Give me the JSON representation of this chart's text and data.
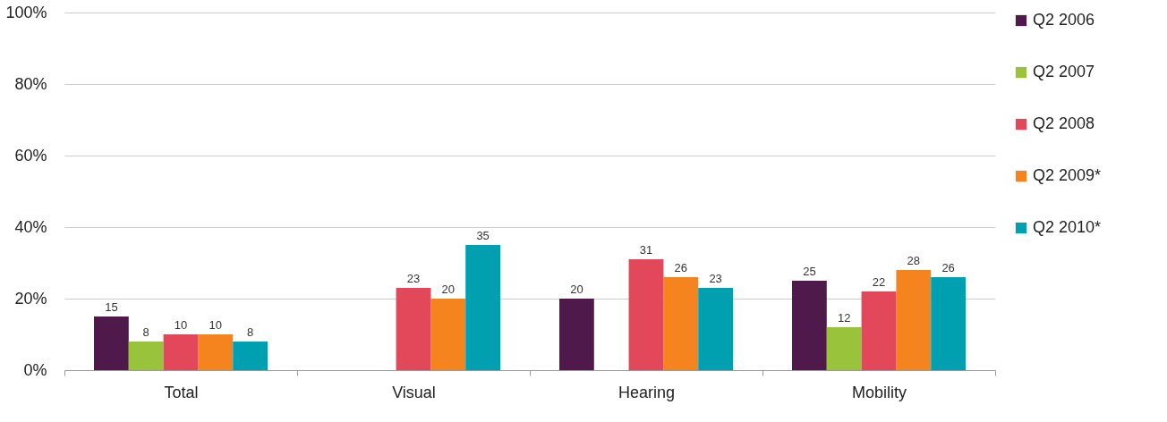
{
  "chart_data": {
    "type": "bar",
    "categories": [
      "Total",
      "Visual",
      "Hearing",
      "Mobility"
    ],
    "series": [
      {
        "name": "Q2 2006",
        "color": "#4f1a4b",
        "values": [
          15,
          null,
          20,
          25
        ]
      },
      {
        "name": "Q2 2007",
        "color": "#99c33a",
        "values": [
          8,
          null,
          null,
          12
        ]
      },
      {
        "name": "Q2 2008",
        "color": "#e2475a",
        "values": [
          10,
          23,
          31,
          22
        ]
      },
      {
        "name": "Q2 2009*",
        "color": "#f5841f",
        "values": [
          10,
          20,
          26,
          28
        ]
      },
      {
        "name": "Q2 2010*",
        "color": "#00a0b0",
        "values": [
          8,
          35,
          23,
          26
        ]
      }
    ],
    "ylim": [
      0,
      100
    ],
    "yticks": [
      {
        "value": 0,
        "label": "0%"
      },
      {
        "value": 20,
        "label": "20%"
      },
      {
        "value": 40,
        "label": "40%"
      },
      {
        "value": 60,
        "label": "60%"
      },
      {
        "value": 80,
        "label": "80%"
      },
      {
        "value": 100,
        "label": "100%"
      }
    ],
    "grid": "y",
    "legend": "right",
    "data_labels": true
  }
}
